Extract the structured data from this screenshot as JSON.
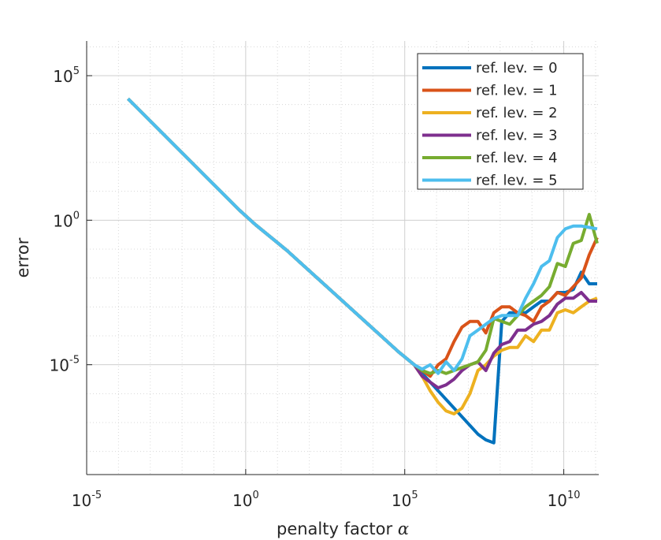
{
  "chart_data": {
    "type": "line",
    "title": "",
    "xlabel": "penalty factor",
    "xlabel_symbol": "α",
    "ylabel": "error",
    "x_scale": "log10",
    "y_scale": "log10",
    "xlim_exp": [
      -5,
      11.1
    ],
    "ylim_exp": [
      -8.8,
      6.2
    ],
    "x_ticks": [
      {
        "base": "10",
        "exp": "-5",
        "value_exp": -5
      },
      {
        "base": "10",
        "exp": "0",
        "value_exp": 0
      },
      {
        "base": "10",
        "exp": "5",
        "value_exp": 5
      },
      {
        "base": "10",
        "exp": "10",
        "value_exp": 10
      }
    ],
    "y_ticks": [
      {
        "base": "10",
        "exp": "5",
        "value_exp": 5
      },
      {
        "base": "10",
        "exp": "0",
        "value_exp": 0
      },
      {
        "base": "10",
        "exp": "-5",
        "value_exp": -5
      }
    ],
    "grid": true,
    "legend_position": "top-right",
    "series_x_exp": [
      -3.7,
      -3.2,
      -2.7,
      -2.2,
      -1.7,
      -1.2,
      -0.7,
      -0.2,
      0.3,
      0.8,
      1.3,
      1.8,
      2.3,
      2.8,
      3.3,
      3.8,
      4.3,
      4.8,
      5.3,
      5.55,
      5.8,
      6.05,
      6.3,
      6.55,
      6.8,
      7.05,
      7.3,
      7.55,
      7.8,
      8.05,
      8.3,
      8.55,
      8.8,
      9.05,
      9.3,
      9.55,
      9.8,
      10.05,
      10.3,
      10.55,
      10.8,
      11.05
    ],
    "series": [
      {
        "name": "ref. lev. = 0",
        "color": "#0072BD",
        "y_exp": [
          4.2,
          3.65,
          3.1,
          2.55,
          2.0,
          1.45,
          0.9,
          0.35,
          -0.15,
          -0.6,
          -1.05,
          -1.55,
          -2.05,
          -2.55,
          -3.05,
          -3.55,
          -4.05,
          -4.55,
          -5.0,
          -5.3,
          -5.6,
          -5.9,
          -6.2,
          -6.5,
          -6.8,
          -7.1,
          -7.4,
          -7.6,
          -7.7,
          -3.5,
          -3.2,
          -3.2,
          -3.2,
          -3.0,
          -2.8,
          -2.8,
          -2.5,
          -2.5,
          -2.4,
          -1.8,
          -2.2,
          -2.2
        ]
      },
      {
        "name": "ref. lev. = 1",
        "color": "#D95319",
        "y_exp": [
          4.2,
          3.65,
          3.1,
          2.55,
          2.0,
          1.45,
          0.9,
          0.35,
          -0.15,
          -0.6,
          -1.05,
          -1.55,
          -2.05,
          -2.55,
          -3.05,
          -3.55,
          -4.05,
          -4.55,
          -5.0,
          -5.2,
          -5.4,
          -5.0,
          -4.8,
          -4.2,
          -3.7,
          -3.5,
          -3.5,
          -3.9,
          -3.2,
          -3.0,
          -3.0,
          -3.2,
          -3.3,
          -3.5,
          -3.0,
          -2.8,
          -2.5,
          -2.6,
          -2.3,
          -2.0,
          -1.2,
          -0.6
        ]
      },
      {
        "name": "ref. lev. = 2",
        "color": "#EDB120",
        "y_exp": [
          4.2,
          3.65,
          3.1,
          2.55,
          2.0,
          1.45,
          0.9,
          0.35,
          -0.15,
          -0.6,
          -1.05,
          -1.55,
          -2.05,
          -2.55,
          -3.05,
          -3.55,
          -4.05,
          -4.55,
          -5.0,
          -5.4,
          -5.9,
          -6.3,
          -6.6,
          -6.7,
          -6.5,
          -6.0,
          -5.2,
          -5.0,
          -4.7,
          -4.5,
          -4.4,
          -4.4,
          -4.0,
          -4.2,
          -3.8,
          -3.8,
          -3.2,
          -3.1,
          -3.2,
          -3.0,
          -2.8,
          -2.7
        ]
      },
      {
        "name": "ref. lev. = 3",
        "color": "#7E2F8E",
        "y_exp": [
          4.2,
          3.65,
          3.1,
          2.55,
          2.0,
          1.45,
          0.9,
          0.35,
          -0.15,
          -0.6,
          -1.05,
          -1.55,
          -2.05,
          -2.55,
          -3.05,
          -3.55,
          -4.05,
          -4.55,
          -5.0,
          -5.4,
          -5.6,
          -5.8,
          -5.7,
          -5.5,
          -5.2,
          -5.0,
          -4.9,
          -5.2,
          -4.6,
          -4.3,
          -4.2,
          -3.8,
          -3.8,
          -3.6,
          -3.5,
          -3.3,
          -2.9,
          -2.7,
          -2.7,
          -2.5,
          -2.8,
          -2.8
        ]
      },
      {
        "name": "ref. lev. = 4",
        "color": "#77AC30",
        "y_exp": [
          4.2,
          3.65,
          3.1,
          2.55,
          2.0,
          1.45,
          0.9,
          0.35,
          -0.15,
          -0.6,
          -1.05,
          -1.55,
          -2.05,
          -2.55,
          -3.05,
          -3.55,
          -4.05,
          -4.55,
          -5.0,
          -5.2,
          -5.3,
          -5.2,
          -5.3,
          -5.2,
          -5.1,
          -5.0,
          -4.9,
          -4.5,
          -3.4,
          -3.5,
          -3.6,
          -3.3,
          -3.0,
          -2.8,
          -2.6,
          -2.3,
          -1.5,
          -1.6,
          -0.8,
          -0.7,
          0.2,
          -0.8
        ]
      },
      {
        "name": "ref. lev. = 5",
        "color": "#4DBEEE",
        "y_exp": [
          4.2,
          3.65,
          3.1,
          2.55,
          2.0,
          1.45,
          0.9,
          0.35,
          -0.15,
          -0.6,
          -1.05,
          -1.55,
          -2.05,
          -2.55,
          -3.05,
          -3.55,
          -4.05,
          -4.55,
          -5.0,
          -5.15,
          -5.0,
          -5.3,
          -4.9,
          -5.2,
          -4.8,
          -4.0,
          -3.8,
          -3.6,
          -3.4,
          -3.3,
          -3.3,
          -3.3,
          -2.7,
          -2.2,
          -1.6,
          -1.4,
          -0.6,
          -0.3,
          -0.2,
          -0.2,
          -0.25,
          -0.3
        ]
      }
    ]
  }
}
